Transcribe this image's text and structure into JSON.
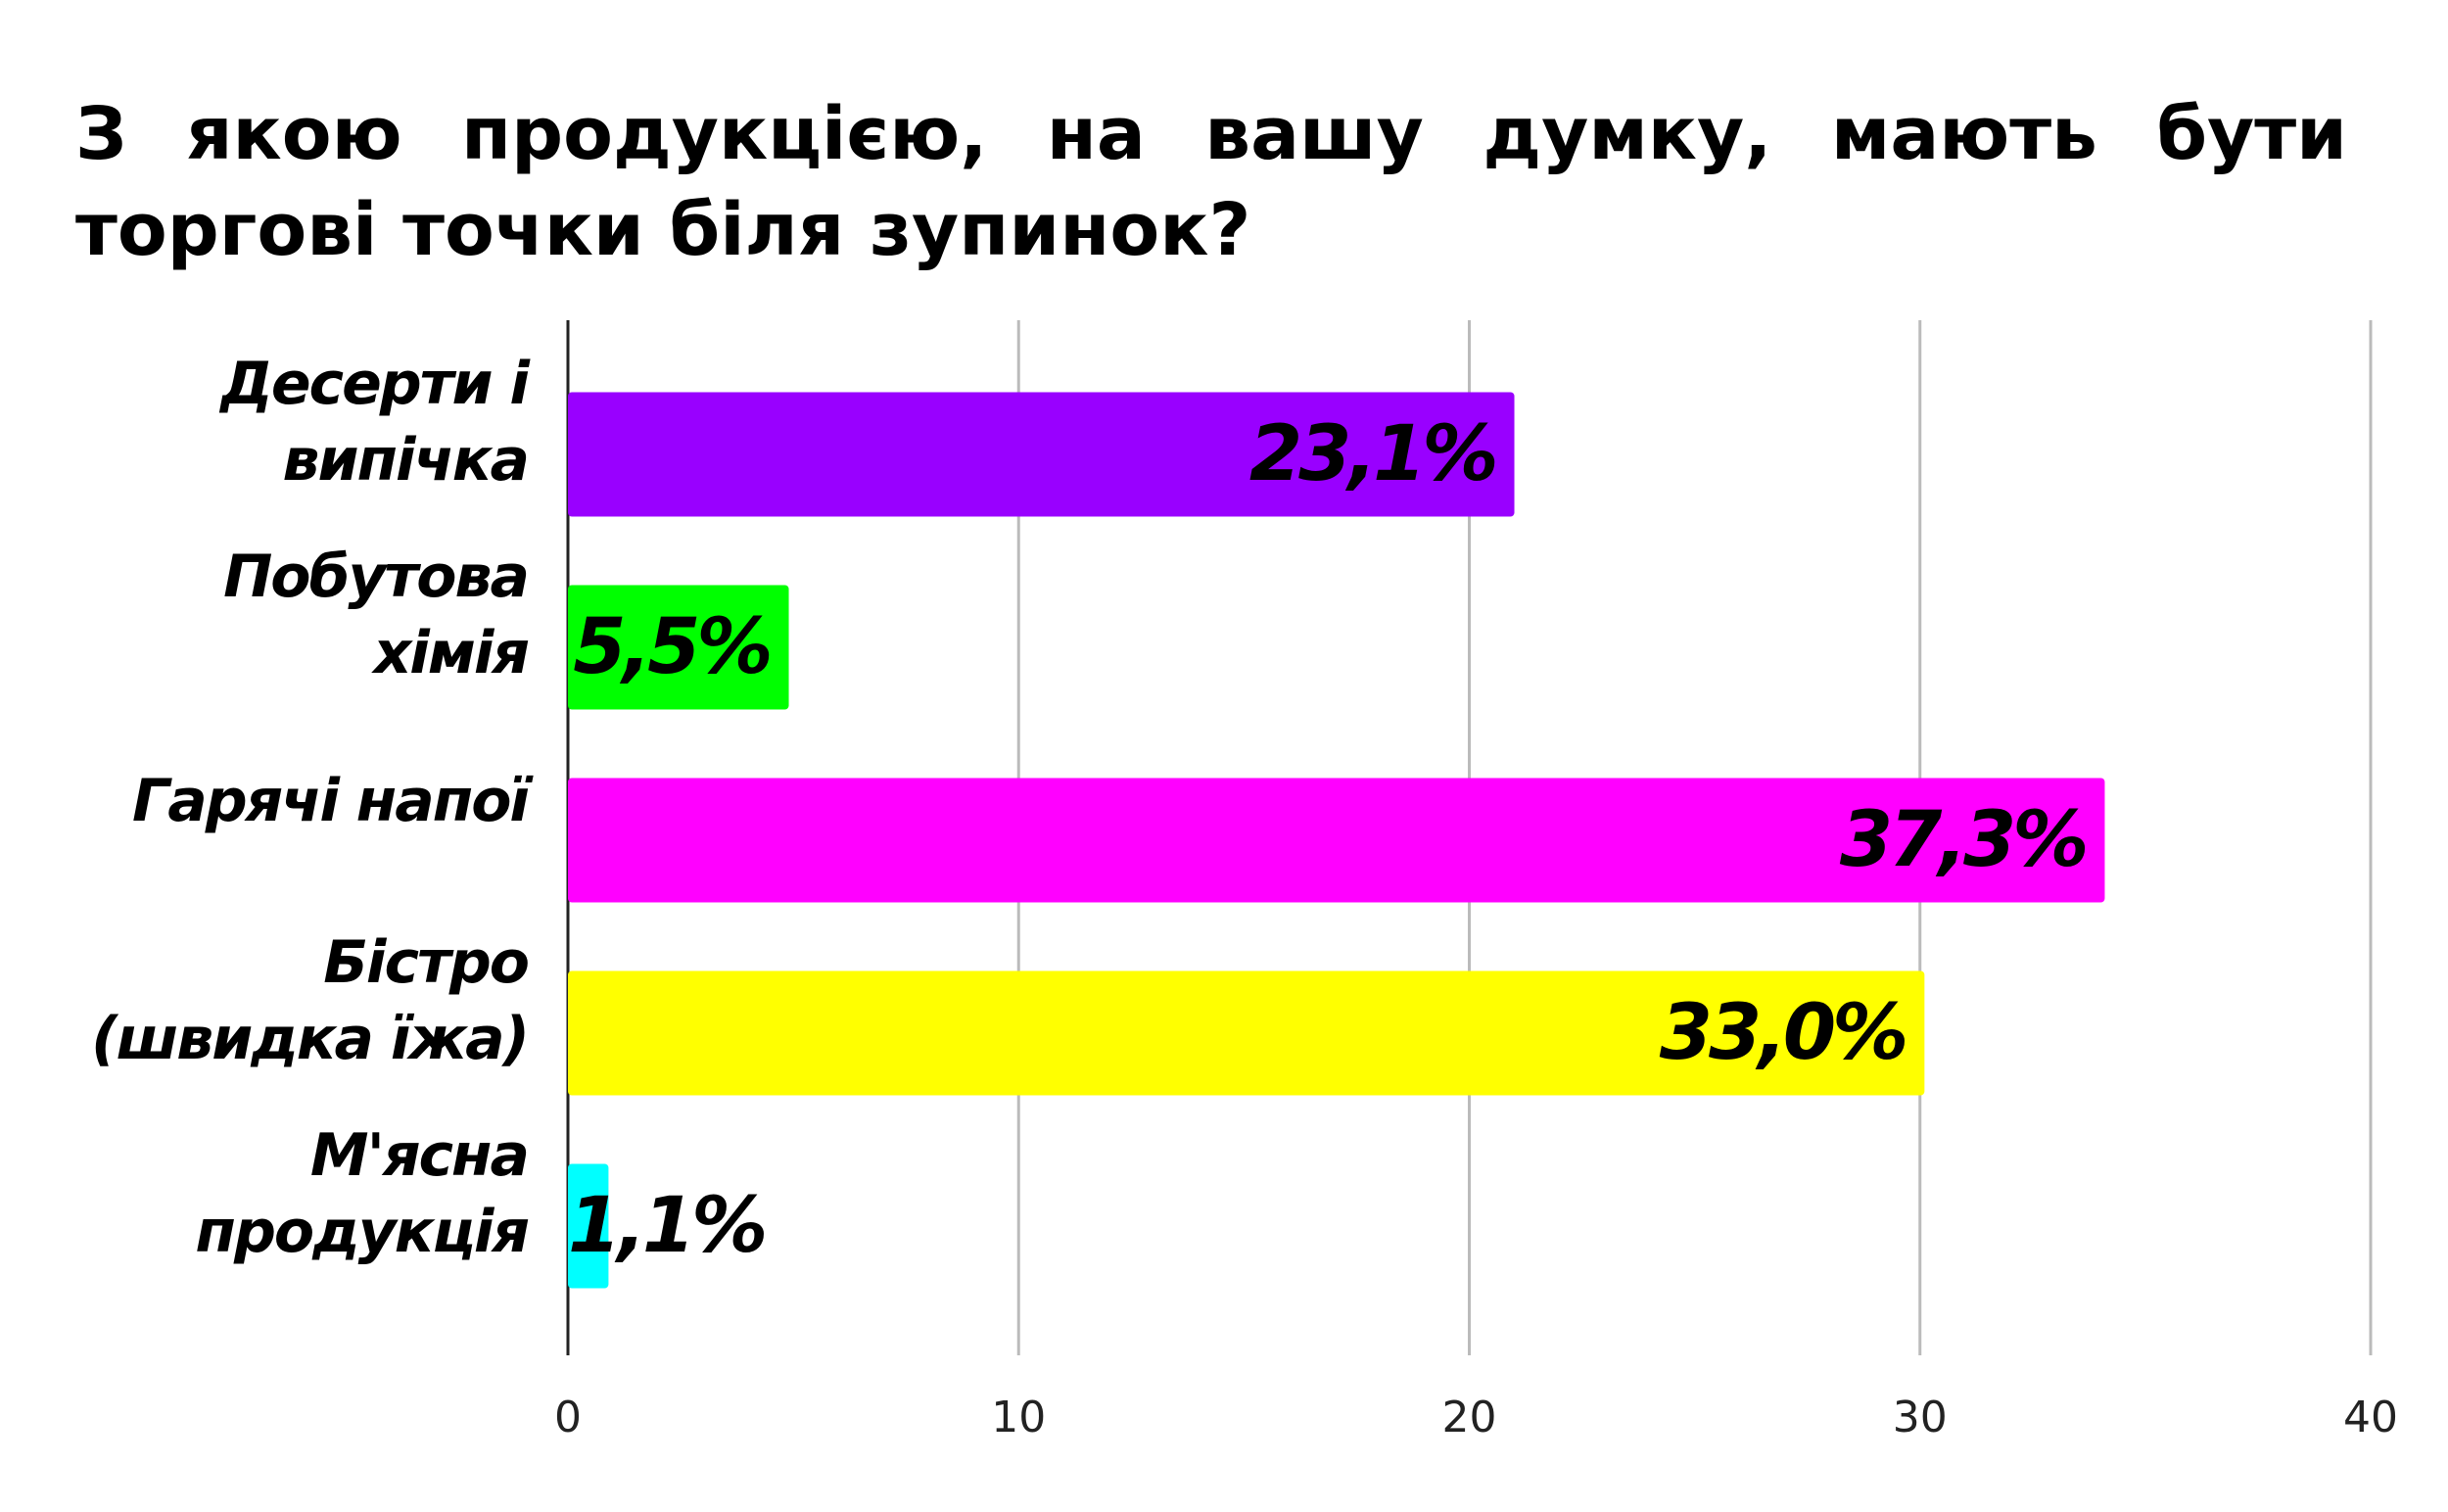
{
  "chart_data": {
    "type": "bar",
    "orientation": "horizontal",
    "title": "З якою продукцією, на вашу думку, мають бути торгові точки біля зупинок?",
    "categories": [
      "Десерти і\nвипічка",
      "Побутова\nхімія",
      "Гарячі напої",
      "Бістро\n(швидка їжа)",
      "М'ясна\nпродукція"
    ],
    "values": [
      21.0,
      4.9,
      34.1,
      30.1,
      0.9
    ],
    "bar_labels": [
      "23,1%",
      "5,5%",
      "37,3%",
      "33,0%",
      "1,1%"
    ],
    "colors": [
      "#9900ff",
      "#00ff00",
      "#ff00ff",
      "#ffff00",
      "#00ffff"
    ],
    "xlim": [
      0,
      40
    ],
    "xticks": [
      0,
      10,
      20,
      30,
      40
    ],
    "grid": true
  }
}
